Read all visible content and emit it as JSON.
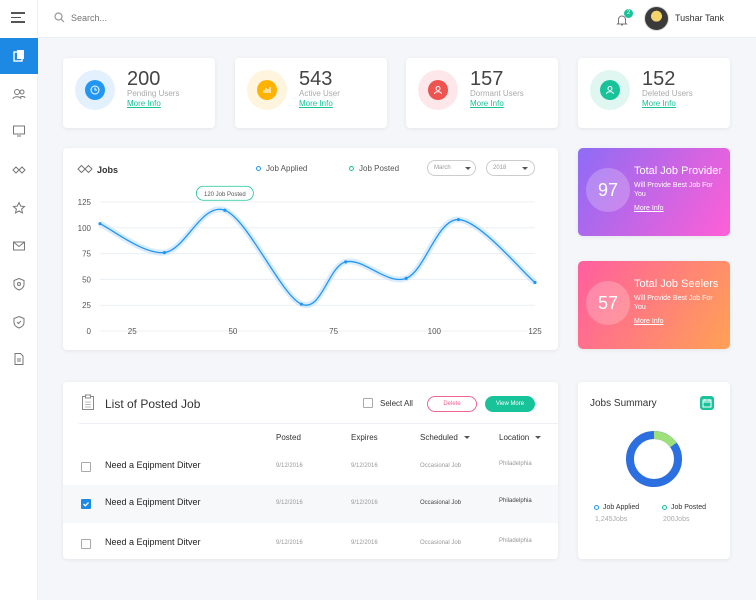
{
  "search": {
    "placeholder": "Search..."
  },
  "topbar": {
    "notification_count": "2",
    "user_name": "Tushar Tank"
  },
  "stats": [
    {
      "value": "200",
      "label": "Pending Users",
      "link": "More Info",
      "color": "#2196f3"
    },
    {
      "value": "543",
      "label": "Active User",
      "link": "More Info",
      "color": "#ffb300"
    },
    {
      "value": "157",
      "label": "Dormant Users",
      "link": "More Info",
      "color": "#ef5350"
    },
    {
      "value": "152",
      "label": "Deleted Users",
      "link": "More Info",
      "color": "#19c39a"
    }
  ],
  "jobs_chart": {
    "title": "Jobs",
    "legend_applied": "Job Applied",
    "legend_posted": "Job Posted",
    "month_select": "March",
    "year_select": "2018",
    "tooltip": "120 Job Posted"
  },
  "chart_data": {
    "type": "line",
    "xlim": [
      17,
      125
    ],
    "ylim": [
      0,
      125
    ],
    "x_ticks": [
      "25",
      "50",
      "75",
      "100",
      "125"
    ],
    "y_ticks": [
      "0",
      "25",
      "50",
      "75",
      "100",
      "125"
    ],
    "series": [
      {
        "name": "Job Applied",
        "x": [
          17,
          33,
          48,
          67,
          78,
          93,
          106,
          125
        ],
        "y": [
          104,
          76,
          117,
          26,
          67,
          51,
          108,
          47
        ]
      }
    ]
  },
  "promos": [
    {
      "number": "97",
      "title": "Total Job Provider",
      "subtitle": "Will Provide Best Job For You",
      "link": "More Info"
    },
    {
      "number": "57",
      "title": "Total Job Seelers",
      "subtitle": "Will Provide Best Job For You",
      "link": "More Info"
    }
  ],
  "job_list": {
    "title": "List of Posted Job",
    "select_all": "Select All",
    "delete_label": "Delete",
    "view_more_label": "View More",
    "columns": {
      "posted": "Posted",
      "expires": "Expires",
      "scheduled": "Scheduled",
      "location": "Location"
    },
    "rows": [
      {
        "name": "Need a Eqipment Ditver",
        "posted": "9/12/2016",
        "expires": "9/12/2016",
        "scheduled": "Occasional Job",
        "location": "Philadelphia",
        "checked": false
      },
      {
        "name": "Need a Eqipment Ditver",
        "posted": "9/12/2016",
        "expires": "9/12/2016",
        "scheduled": "Occasional Job",
        "location": "Philadelphia",
        "checked": true
      },
      {
        "name": "Need a Eqipment Ditver",
        "posted": "9/12/2016",
        "expires": "9/12/2016",
        "scheduled": "Occasional Job",
        "location": "Philadelphia",
        "checked": false
      }
    ]
  },
  "jobs_summary": {
    "title": "Jobs Summary",
    "applied_label": "Job Applied",
    "applied_value": "1,245Jobs",
    "posted_label": "Job Posted",
    "posted_value": "200Jobs",
    "applied_fraction": 0.85,
    "posted_fraction": 0.15
  }
}
